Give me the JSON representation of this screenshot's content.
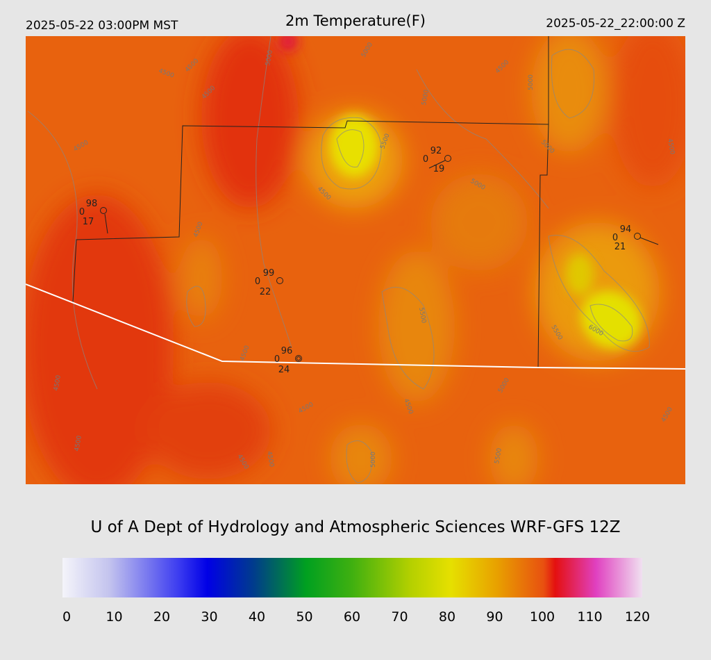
{
  "header": {
    "left": "2025-05-22 03:00PM MST",
    "title": "2m Temperature(F)",
    "right": "2025-05-22_22:00:00 Z"
  },
  "stations": [
    {
      "temperature": 98,
      "code": 0,
      "dewpoint": 17
    },
    {
      "temperature": 92,
      "code": 0,
      "dewpoint": 19
    },
    {
      "temperature": 94,
      "code": 0,
      "dewpoint": 21
    },
    {
      "temperature": 99,
      "code": 0,
      "dewpoint": 22
    },
    {
      "temperature": 96,
      "code": 0,
      "dewpoint": 24
    }
  ],
  "contour_labels": [
    4500,
    4500,
    5000,
    5000,
    4500,
    4500,
    5500,
    5000,
    4500,
    5000,
    5000,
    5000,
    4500,
    4500,
    5500,
    4500,
    4500,
    4500,
    5000,
    5500,
    6000,
    4500,
    4500,
    5000,
    5500,
    4500,
    4500,
    4500,
    4500
  ],
  "footer": "U of A Dept of Hydrology and Atmospheric Sciences WRF-GFS 12Z",
  "colorbar": {
    "ticks": [
      0,
      10,
      20,
      30,
      40,
      50,
      60,
      70,
      80,
      90,
      100,
      110,
      120
    ]
  }
}
